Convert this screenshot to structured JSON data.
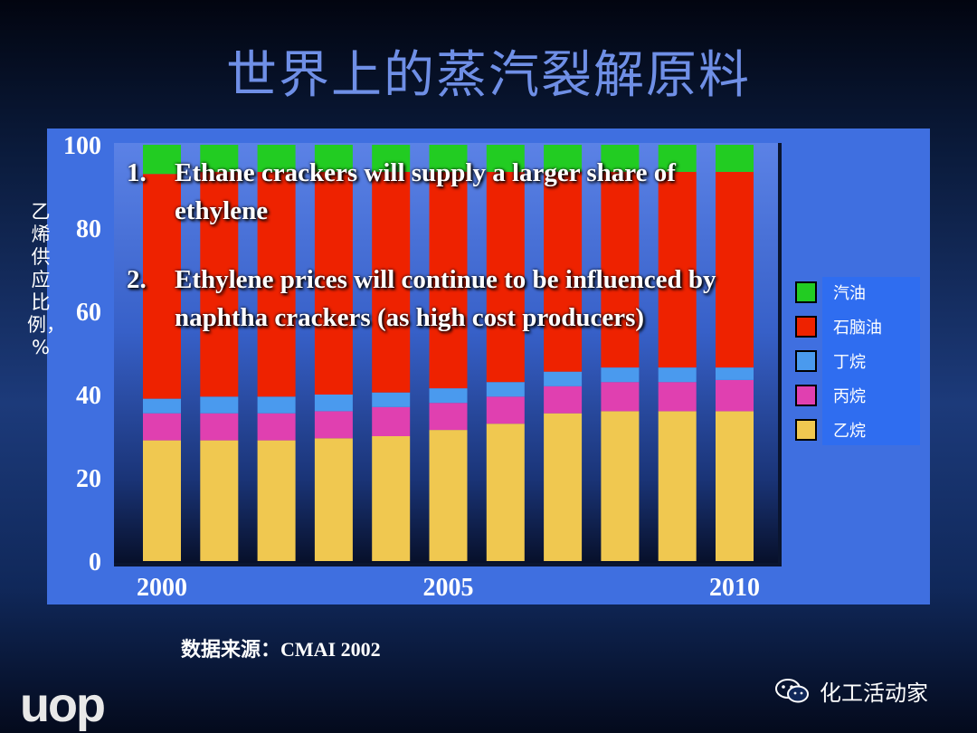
{
  "title": "世界上的蒸汽裂解原料",
  "y_axis_label": "乙烯供应比例，%",
  "source_text": "数据来源：",
  "source_name": "CMAI 2002",
  "logo_text": "uop",
  "brand_text": "化工活动家",
  "annotations": [
    {
      "num": "1.",
      "text": "Ethane crackers will supply a larger share of ethylene"
    },
    {
      "num": "2.",
      "text": "Ethylene prices will continue to be influenced by naphtha crackers (as high cost producers)"
    }
  ],
  "colors": {
    "汽油": "#22cc22",
    "石脑油": "#ee2200",
    "丁烷": "#4a9aee",
    "丙烷": "#e040b0",
    "乙烷": "#f0c850"
  },
  "chart_data": {
    "type": "bar",
    "stacked": true,
    "x": [
      2000,
      2001,
      2002,
      2003,
      2004,
      2005,
      2006,
      2007,
      2008,
      2009,
      2010
    ],
    "x_tick_labels": [
      "2000",
      "2005",
      "2010"
    ],
    "y_ticks": [
      0,
      20,
      40,
      60,
      80,
      100
    ],
    "ylim": [
      0,
      100
    ],
    "ylabel": "乙烯供应比例，%",
    "series": [
      {
        "name": "乙烷",
        "values": [
          29,
          29,
          29,
          29.5,
          30,
          31.5,
          33,
          35.5,
          36,
          36,
          36
        ]
      },
      {
        "name": "丙烷",
        "values": [
          6.5,
          6.5,
          6.5,
          6.5,
          7,
          6.5,
          6.5,
          6.5,
          7,
          7,
          7.5
        ]
      },
      {
        "name": "丁烷",
        "values": [
          3.5,
          4,
          4,
          4,
          3.5,
          3.5,
          3.5,
          3.5,
          3.5,
          3.5,
          3
        ]
      },
      {
        "name": "石脑油",
        "values": [
          54,
          54,
          54,
          53.5,
          53,
          52,
          50.5,
          48,
          47,
          47,
          47
        ]
      },
      {
        "name": "汽油",
        "values": [
          7,
          6.5,
          6.5,
          6.5,
          6.5,
          6.5,
          6.5,
          6.5,
          6.5,
          6.5,
          6.5
        ]
      }
    ],
    "legend_order": [
      "汽油",
      "石脑油",
      "丁烷",
      "丙烷",
      "乙烷"
    ],
    "legend_position": "right"
  }
}
